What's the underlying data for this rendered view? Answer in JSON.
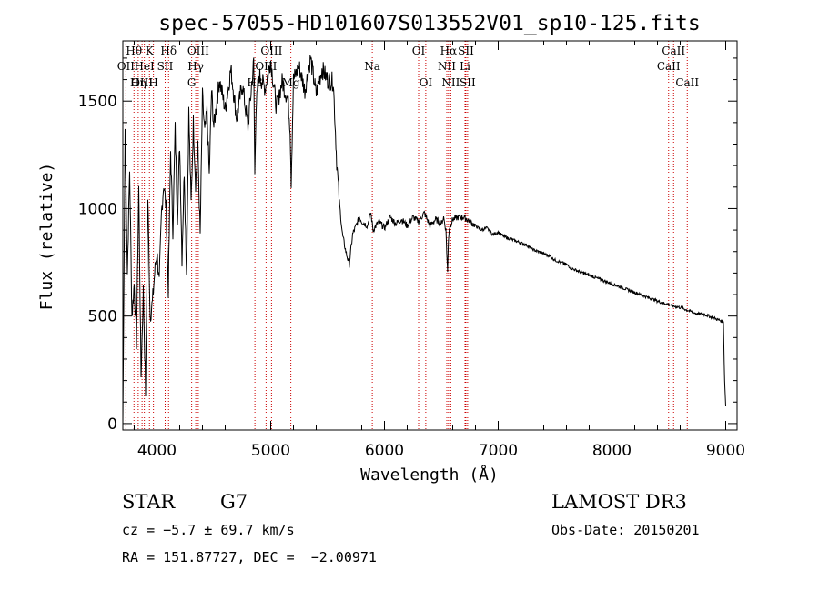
{
  "chart_data": {
    "type": "line",
    "title": "spec-57055-HD101607S013552V01_sp10-125.fits",
    "xlabel": "Wavelength (Å)",
    "ylabel": "Flux (relative)",
    "xlim": [
      3700,
      9100
    ],
    "ylim": [
      -30,
      1780
    ],
    "xticks": [
      4000,
      5000,
      6000,
      7000,
      8000,
      9000
    ],
    "yticks": [
      0,
      500,
      1000,
      1500
    ],
    "series": [
      {
        "name": "spectrum",
        "x": [
          3700,
          3720,
          3740,
          3760,
          3780,
          3800,
          3820,
          3840,
          3860,
          3880,
          3900,
          3920,
          3940,
          3960,
          3980,
          4000,
          4020,
          4040,
          4060,
          4080,
          4100,
          4120,
          4140,
          4160,
          4180,
          4200,
          4220,
          4240,
          4260,
          4280,
          4300,
          4320,
          4340,
          4360,
          4380,
          4400,
          4420,
          4440,
          4460,
          4480,
          4500,
          4550,
          4600,
          4650,
          4700,
          4750,
          4800,
          4850,
          4860,
          4870,
          4900,
          4950,
          5000,
          5050,
          5100,
          5150,
          5170,
          5180,
          5200,
          5250,
          5300,
          5350,
          5400,
          5450,
          5500,
          5550,
          5580,
          5600,
          5630,
          5660,
          5690,
          5720,
          5750,
          5780,
          5800,
          5850,
          5880,
          5900,
          5950,
          6000,
          6050,
          6100,
          6150,
          6200,
          6250,
          6300,
          6350,
          6400,
          6450,
          6500,
          6520,
          6540,
          6555,
          6562,
          6570,
          6600,
          6650,
          6700,
          6750,
          6800,
          6850,
          6900,
          6950,
          7000,
          7050,
          7100,
          7150,
          7200,
          7250,
          7300,
          7350,
          7400,
          7450,
          7500,
          7550,
          7600,
          7650,
          7700,
          7750,
          7800,
          7850,
          7900,
          7950,
          8000,
          8050,
          8100,
          8150,
          8200,
          8250,
          8300,
          8350,
          8400,
          8450,
          8500,
          8550,
          8600,
          8650,
          8700,
          8750,
          8800,
          8850,
          8900,
          8950,
          8980,
          8990,
          9000
        ],
        "y": [
          0,
          1370,
          700,
          1180,
          500,
          650,
          380,
          1100,
          220,
          620,
          150,
          1050,
          500,
          560,
          700,
          800,
          650,
          980,
          1120,
          1000,
          620,
          1270,
          900,
          1370,
          960,
          1300,
          770,
          1180,
          700,
          1450,
          1020,
          1400,
          1120,
          1280,
          870,
          1520,
          1350,
          1450,
          1150,
          1550,
          1380,
          1600,
          1460,
          1650,
          1420,
          1580,
          1380,
          1680,
          1150,
          1470,
          1620,
          1560,
          1690,
          1470,
          1590,
          1510,
          1380,
          1130,
          1600,
          1660,
          1550,
          1700,
          1530,
          1650,
          1600,
          1590,
          1220,
          1050,
          880,
          800,
          740,
          880,
          920,
          960,
          940,
          920,
          980,
          900,
          940,
          910,
          960,
          930,
          950,
          920,
          960,
          940,
          980,
          920,
          950,
          930,
          960,
          900,
          700,
          860,
          910,
          950,
          960,
          960,
          940,
          920,
          900,
          910,
          880,
          890,
          870,
          860,
          850,
          840,
          830,
          810,
          800,
          790,
          780,
          760,
          750,
          740,
          720,
          710,
          700,
          690,
          680,
          670,
          660,
          650,
          640,
          630,
          620,
          610,
          600,
          590,
          580,
          570,
          560,
          555,
          545,
          540,
          530,
          520,
          510,
          510,
          500,
          490,
          480,
          470,
          200,
          80
        ]
      }
    ],
    "line_markers": [
      {
        "label": "Hθ",
        "wavelength": 3798,
        "row": 1
      },
      {
        "label": "OII",
        "wavelength": 3727,
        "row": 2
      },
      {
        "label": "OIII",
        "wavelength": 3869,
        "row": 3
      },
      {
        "label": "K",
        "wavelength": 3934,
        "row": 1
      },
      {
        "label": "HeI",
        "wavelength": 3889,
        "row": 2
      },
      {
        "label": "Hη",
        "wavelength": 3835,
        "row": 3
      },
      {
        "label": "Hδ",
        "wavelength": 4102,
        "row": 1
      },
      {
        "label": "SII",
        "wavelength": 4072,
        "row": 2
      },
      {
        "label": "H",
        "wavelength": 3969,
        "row": 3
      },
      {
        "label": "OIII",
        "wavelength": 4363,
        "row": 1
      },
      {
        "label": "Hγ",
        "wavelength": 4341,
        "row": 2
      },
      {
        "label": "G",
        "wavelength": 4305,
        "row": 3
      },
      {
        "label": "OIII",
        "wavelength": 5007,
        "row": 1
      },
      {
        "label": "OIII",
        "wavelength": 4959,
        "row": 2
      },
      {
        "label": "Hβ",
        "wavelength": 4861,
        "row": 3
      },
      {
        "label": "Mg",
        "wavelength": 5177,
        "row": 3
      },
      {
        "label": "Na",
        "wavelength": 5893,
        "row": 2
      },
      {
        "label": "OI",
        "wavelength": 6300,
        "row": 1
      },
      {
        "label": "OI",
        "wavelength": 6363,
        "row": 3
      },
      {
        "label": "Hα",
        "wavelength": 6563,
        "row": 1
      },
      {
        "label": "NII",
        "wavelength": 6548,
        "row": 2
      },
      {
        "label": "NII",
        "wavelength": 6583,
        "row": 3
      },
      {
        "label": "SII",
        "wavelength": 6716,
        "row": 1
      },
      {
        "label": "Li",
        "wavelength": 6708,
        "row": 2
      },
      {
        "label": "SII",
        "wavelength": 6731,
        "row": 3
      },
      {
        "label": "CaII",
        "wavelength": 8542,
        "row": 1
      },
      {
        "label": "CaII",
        "wavelength": 8498,
        "row": 2
      },
      {
        "label": "CaII",
        "wavelength": 8662,
        "row": 3
      }
    ],
    "colors": {
      "spectrum": "#000000",
      "markers": "#cc0000"
    }
  },
  "info": {
    "class": "STAR",
    "subclass": "G7",
    "cz": "cz = −5.7 ± 69.7 km/s",
    "radec": "RA = 151.87727, DEC =  −2.00971",
    "survey": "LAMOST DR3",
    "obsdate": "Obs-Date: 20150201"
  }
}
